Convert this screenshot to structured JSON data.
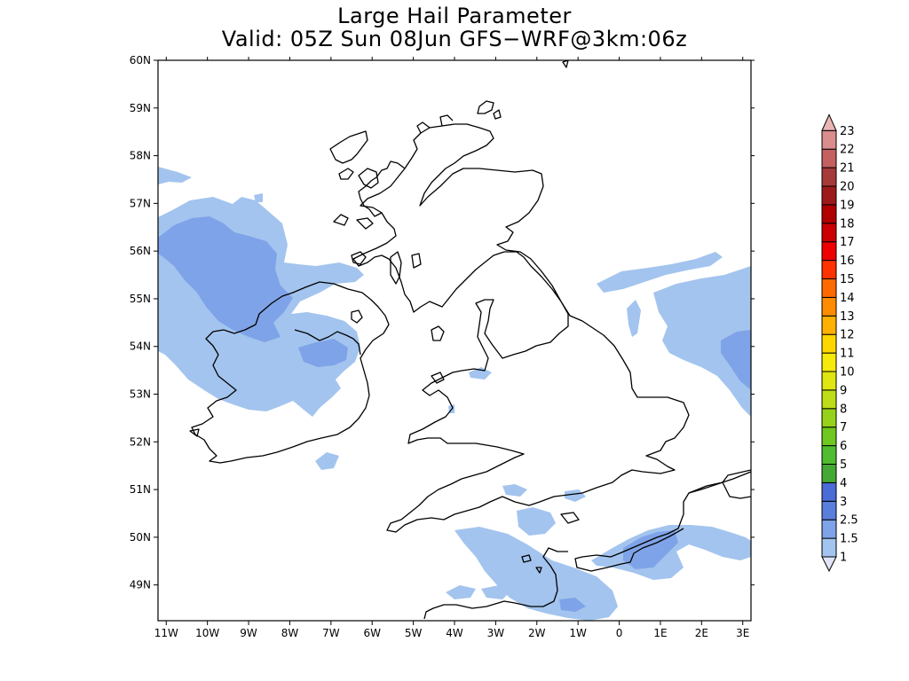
{
  "title": "Large Hail Parameter",
  "subtitle": "Valid: 05Z Sun 08Jun GFS−WRF@3km:06z",
  "map": {
    "lat_ticks": [
      "60N",
      "59N",
      "58N",
      "57N",
      "56N",
      "55N",
      "54N",
      "53N",
      "52N",
      "51N",
      "50N",
      "49N"
    ],
    "lon_ticks": [
      "11W",
      "10W",
      "9W",
      "8W",
      "7W",
      "6W",
      "5W",
      "4W",
      "3W",
      "2W",
      "1W",
      "0",
      "1E",
      "2E",
      "3E"
    ],
    "lat_values": [
      60,
      59,
      58,
      57,
      56,
      55,
      54,
      53,
      52,
      51,
      50,
      49
    ],
    "lon_values": [
      -11,
      -10,
      -9,
      -8,
      -7,
      -6,
      -5,
      -4,
      -3,
      -2,
      -1,
      0,
      1,
      2,
      3
    ],
    "lat_range": [
      48.25,
      60.0
    ],
    "lon_range": [
      -11.2,
      3.2
    ],
    "colors": {
      "level_1": "#a3c4ee",
      "level_1_5": "#7fa3e8",
      "coast": "#000000"
    }
  },
  "legend": {
    "labels": [
      "1",
      "1.5",
      "2.5",
      "3",
      "4",
      "5",
      "6",
      "7",
      "8",
      "9",
      "10",
      "11",
      "12",
      "13",
      "14",
      "15",
      "16",
      "17",
      "18",
      "19",
      "20",
      "21",
      "22",
      "23"
    ],
    "colors": [
      "#e0e6f8",
      "#a3c4ee",
      "#7fa3e8",
      "#5a7edc",
      "#4b6cd6",
      "#44a934",
      "#4fbd2f",
      "#6fc71f",
      "#96d21b",
      "#bfdc18",
      "#e0e60f",
      "#f5ea0a",
      "#ffd700",
      "#ffb000",
      "#ff8c00",
      "#ff6a00",
      "#ff3300",
      "#ee0000",
      "#cc0000",
      "#b00000",
      "#9c1a1a",
      "#a63a3a",
      "#c46060",
      "#d98d8d",
      "#eab5b5"
    ]
  }
}
